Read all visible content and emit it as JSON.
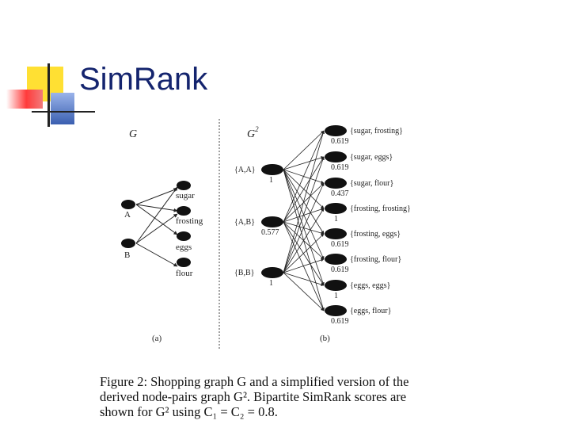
{
  "slide": {
    "title": "SimRank",
    "colors": {
      "title": "#14246e",
      "yellow": "#ffe033",
      "red": "#ee3a3a",
      "blue": "#3a5fb0",
      "line": "#222222"
    }
  },
  "figure": {
    "panel_a": {
      "graph_label": "G",
      "people": [
        "A",
        "B"
      ],
      "items": [
        "sugar",
        "frosting",
        "eggs",
        "flour"
      ],
      "sublabel": "(a)"
    },
    "panel_b": {
      "graph_label": "G",
      "graph_superscript": "2",
      "left_nodes": [
        {
          "label": "{A,A}",
          "score": "1"
        },
        {
          "label": "{A,B}",
          "score": "0.577"
        },
        {
          "label": "{B,B}",
          "score": "1"
        }
      ],
      "right_nodes": [
        {
          "label": "{sugar, frosting}",
          "score": "0.619"
        },
        {
          "label": "{sugar, eggs}",
          "score": "0.619"
        },
        {
          "label": "{sugar, flour}",
          "score": "0.437"
        },
        {
          "label": "{frosting, frosting}",
          "score": "1"
        },
        {
          "label": "{frosting, eggs}",
          "score": "0.619"
        },
        {
          "label": "{frosting, flour}",
          "score": "0.619"
        },
        {
          "label": "{eggs, eggs}",
          "score": "1"
        },
        {
          "label": "{eggs, flour}",
          "score": "0.619"
        }
      ],
      "sublabel": "(b)"
    },
    "caption": {
      "line1": "Figure 2:  Shopping graph G and a simplified version of the",
      "line2": "derived node-pairs graph G². Bipartite SimRank scores are",
      "line3": "shown for G² using C₁ = C₂ = 0.8."
    }
  }
}
